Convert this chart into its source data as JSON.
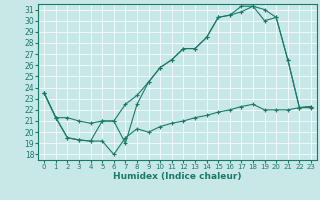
{
  "xlabel": "Humidex (Indice chaleur)",
  "bg_color": "#c8e8e8",
  "line_color": "#1a7a6a",
  "xlim": [
    -0.5,
    23.5
  ],
  "ylim": [
    17.5,
    31.5
  ],
  "xticks": [
    0,
    1,
    2,
    3,
    4,
    5,
    6,
    7,
    8,
    9,
    10,
    11,
    12,
    13,
    14,
    15,
    16,
    17,
    18,
    19,
    20,
    21,
    22,
    23
  ],
  "yticks": [
    18,
    19,
    20,
    21,
    22,
    23,
    24,
    25,
    26,
    27,
    28,
    29,
    30,
    31
  ],
  "line1_x": [
    0,
    1,
    2,
    3,
    4,
    5,
    6,
    7,
    8,
    9,
    10,
    11,
    12,
    13,
    14,
    15,
    16,
    17,
    18,
    19,
    20,
    21,
    22,
    23
  ],
  "line1_y": [
    23.5,
    21.3,
    19.5,
    19.3,
    19.2,
    19.2,
    18.0,
    19.5,
    20.3,
    20.0,
    20.5,
    20.8,
    21.0,
    21.3,
    21.5,
    21.8,
    22.0,
    22.3,
    22.5,
    22.0,
    22.0,
    22.0,
    22.2,
    22.2
  ],
  "line2_x": [
    0,
    1,
    2,
    3,
    4,
    5,
    6,
    7,
    8,
    9,
    10,
    11,
    12,
    13,
    14,
    15,
    16,
    17,
    18,
    19,
    20,
    21,
    22,
    23
  ],
  "line2_y": [
    23.5,
    21.3,
    21.3,
    21.0,
    20.8,
    21.0,
    21.0,
    22.5,
    23.3,
    24.5,
    25.8,
    26.5,
    27.5,
    27.5,
    28.5,
    30.3,
    30.5,
    31.3,
    31.3,
    31.0,
    30.3,
    26.5,
    22.2,
    22.3
  ],
  "line3_x": [
    0,
    1,
    2,
    3,
    4,
    5,
    6,
    7,
    8,
    9,
    10,
    11,
    12,
    13,
    14,
    15,
    16,
    17,
    18,
    19,
    20,
    21,
    22,
    23
  ],
  "line3_y": [
    23.5,
    21.3,
    19.5,
    19.3,
    19.2,
    21.0,
    21.0,
    19.0,
    22.5,
    24.5,
    25.8,
    26.5,
    27.5,
    27.5,
    28.5,
    30.3,
    30.5,
    30.8,
    31.3,
    30.0,
    30.3,
    26.5,
    22.2,
    22.3
  ]
}
